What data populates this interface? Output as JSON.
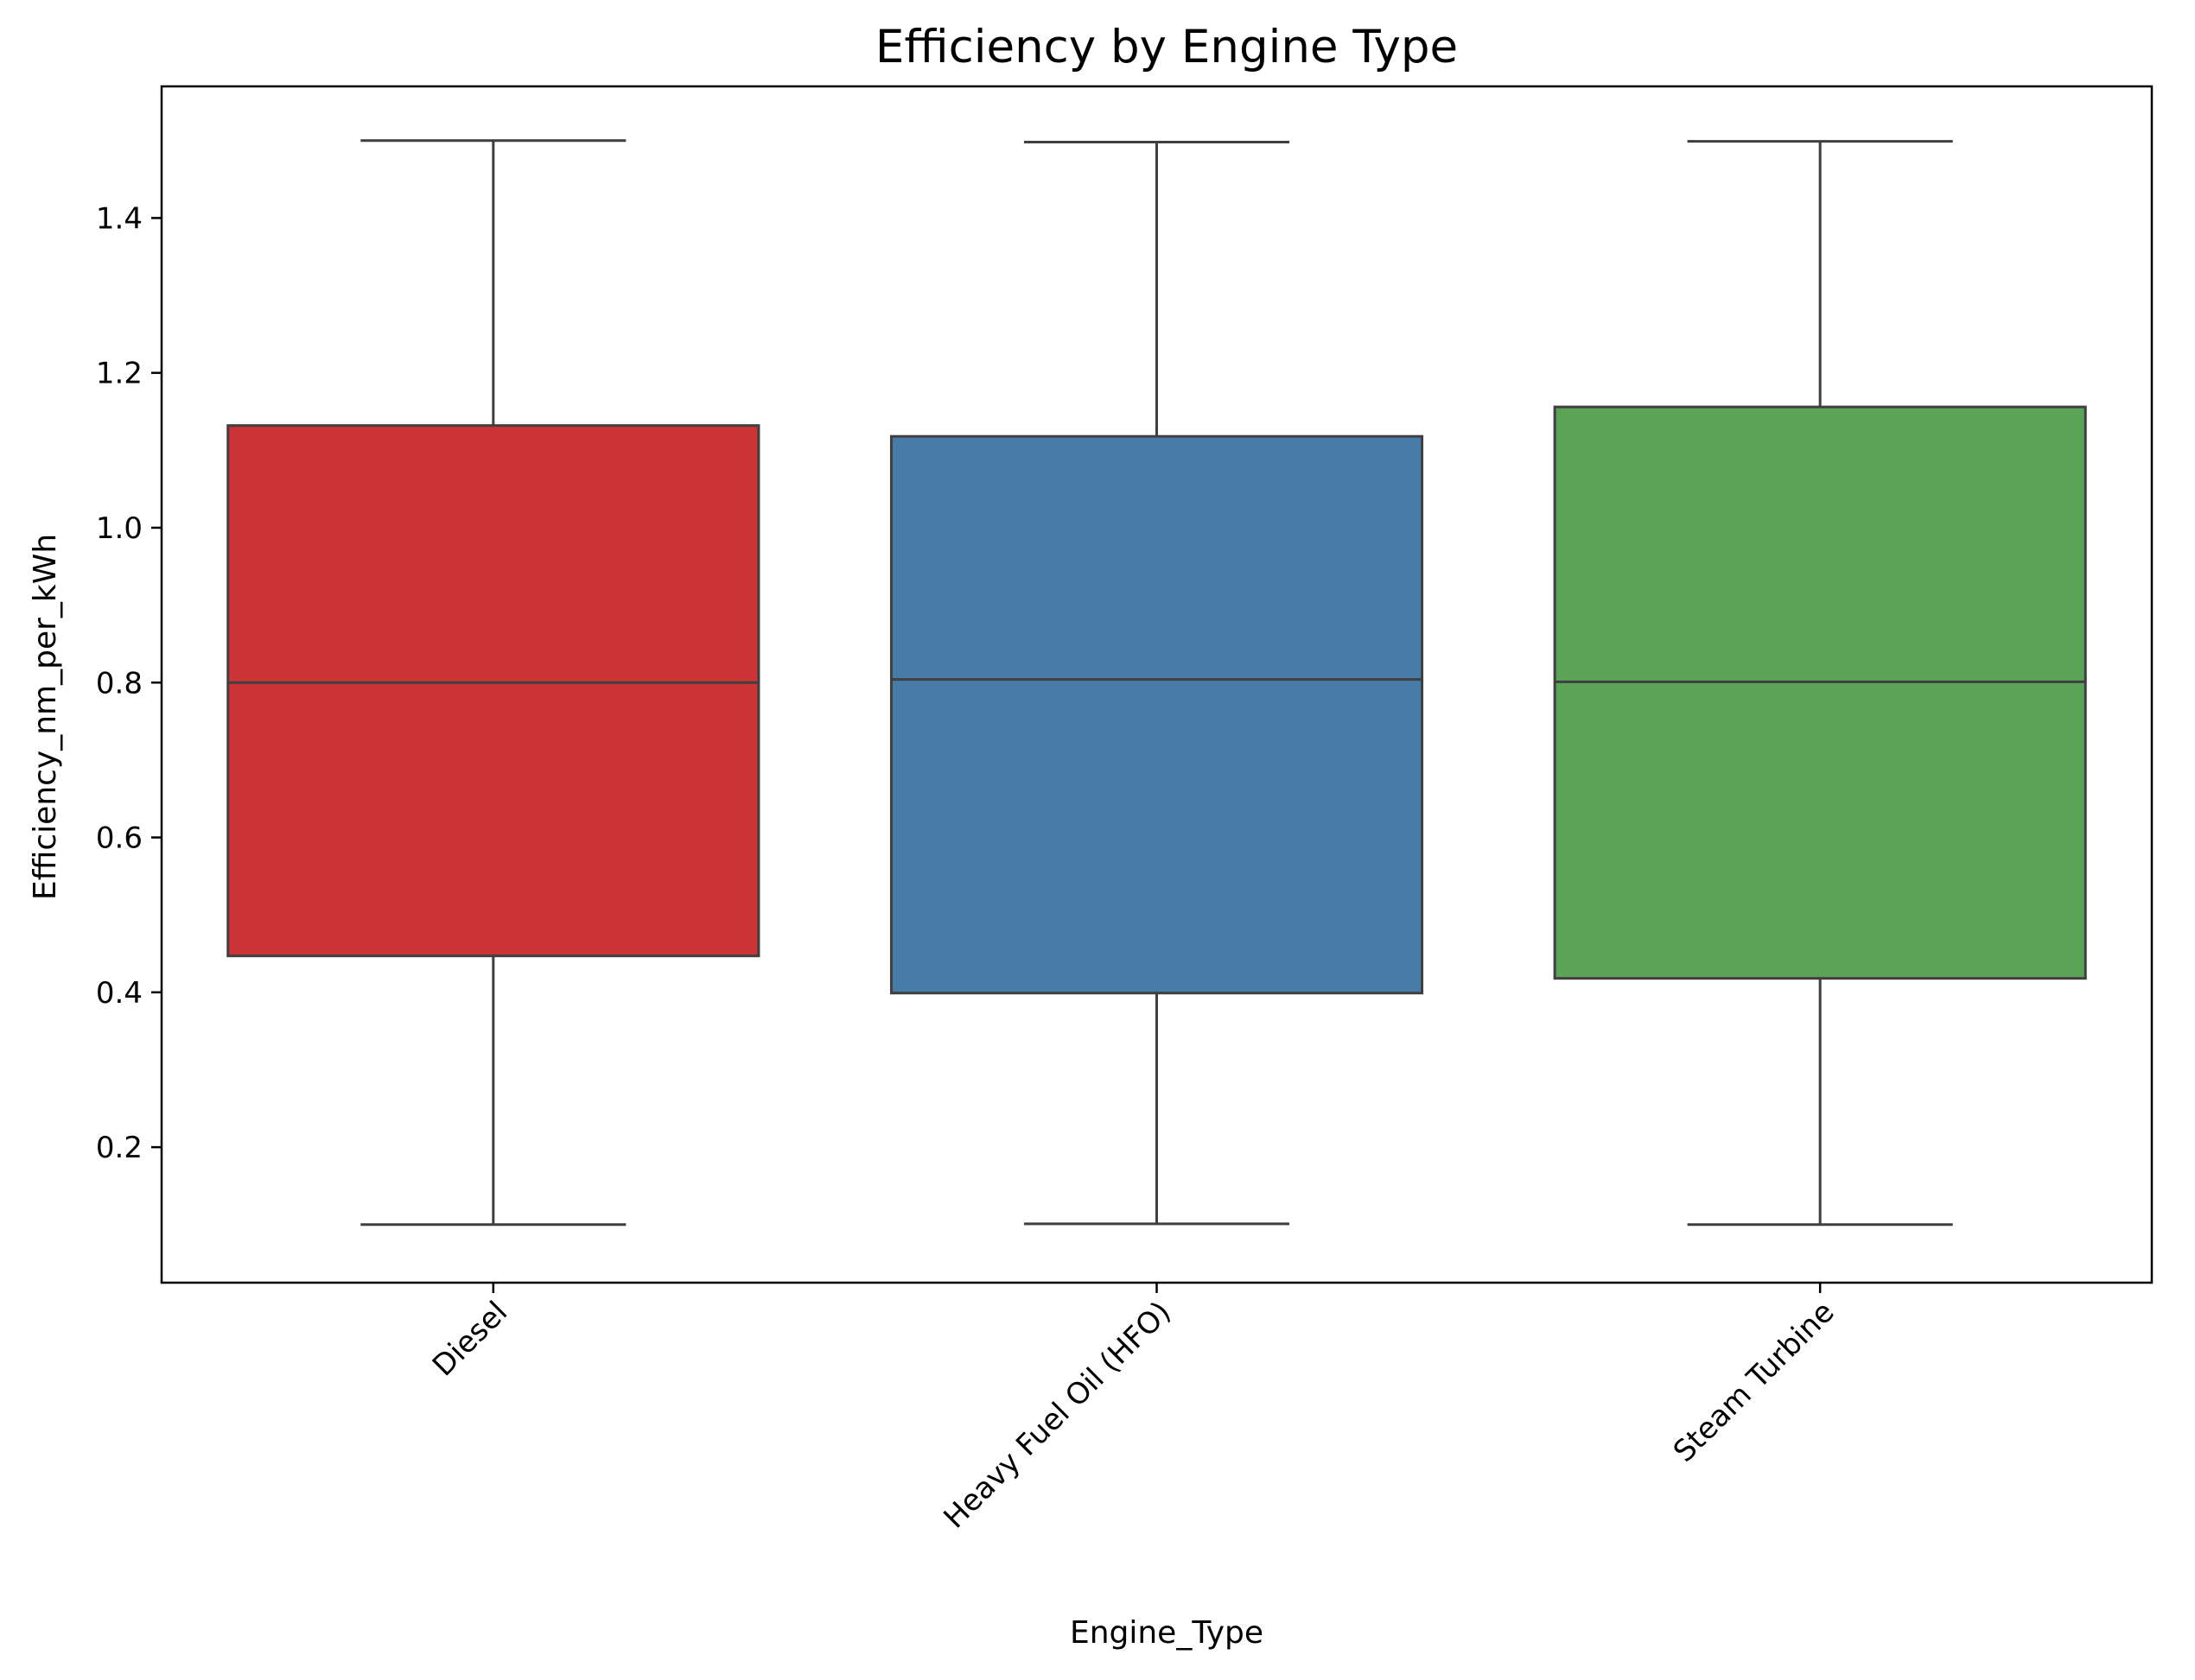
{
  "chart_data": {
    "type": "box",
    "title": "Efficiency by Engine Type",
    "xlabel": "Engine_Type",
    "ylabel": "Efficiency_nm_per_kWh",
    "ylim": [
      0.025,
      1.57
    ],
    "yticks": [
      "0.2",
      "0.4",
      "0.6",
      "0.8",
      "1.0",
      "1.2",
      "1.4"
    ],
    "ytick_values": [
      0.2,
      0.4,
      0.6,
      0.8,
      1.0,
      1.2,
      1.4
    ],
    "grid": false,
    "legend": "none",
    "categories": [
      "Diesel",
      "Heavy Fuel Oil (HFO)",
      "Steam Turbine"
    ],
    "boxes": [
      {
        "category": "Diesel",
        "min": 0.1,
        "q1": 0.447,
        "median": 0.8,
        "q3": 1.132,
        "max": 1.5,
        "color": "#cc3335"
      },
      {
        "category": "Heavy Fuel Oil (HFO)",
        "min": 0.101,
        "q1": 0.399,
        "median": 0.804,
        "q3": 1.118,
        "max": 1.498,
        "color": "#477ca8"
      },
      {
        "category": "Steam Turbine",
        "min": 0.1,
        "q1": 0.418,
        "median": 0.801,
        "q3": 1.156,
        "max": 1.499,
        "color": "#5ba357"
      }
    ],
    "colors": {
      "box_edge": "#3f3f3f",
      "axis": "#000000"
    }
  }
}
